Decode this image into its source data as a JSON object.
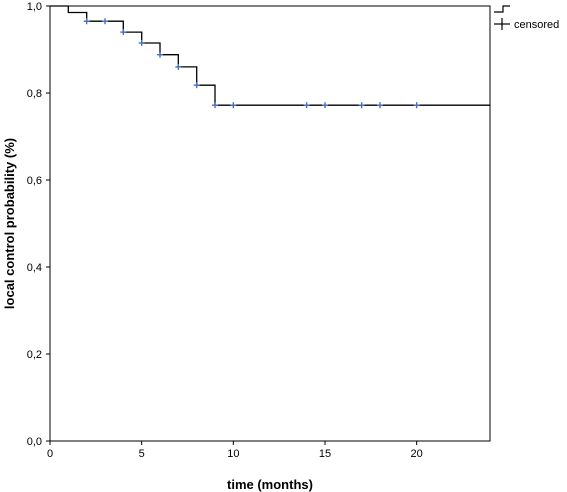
{
  "chart_data": {
    "type": "line",
    "title": "",
    "xlabel": "time (months)",
    "ylabel": "local control probability (%)",
    "xlim": [
      0,
      24
    ],
    "ylim": [
      0,
      1
    ],
    "x_ticks": [
      0,
      5,
      10,
      15,
      20
    ],
    "x_tick_labels": [
      "0",
      "5",
      "10",
      "15",
      "20"
    ],
    "y_ticks": [
      0,
      0.2,
      0.4,
      0.6,
      0.8,
      1.0
    ],
    "y_tick_labels": [
      "0,0",
      "0,2",
      "0,4",
      "0,6",
      "0,8",
      "1,0"
    ],
    "grid": false,
    "legend_position": "top-right",
    "legend": [
      {
        "label": "",
        "marker": "step-line"
      },
      {
        "label": "censored",
        "marker": "plus"
      }
    ],
    "series": [
      {
        "step_curve": [
          [
            0,
            1.0
          ],
          [
            1,
            1.0
          ],
          [
            1,
            0.985
          ],
          [
            2,
            0.985
          ],
          [
            2,
            0.965
          ],
          [
            4,
            0.965
          ],
          [
            4,
            0.94
          ],
          [
            5,
            0.94
          ],
          [
            5,
            0.915
          ],
          [
            6,
            0.915
          ],
          [
            6,
            0.888
          ],
          [
            7,
            0.888
          ],
          [
            7,
            0.86
          ],
          [
            8,
            0.86
          ],
          [
            8,
            0.818
          ],
          [
            9,
            0.818
          ],
          [
            9,
            0.772
          ],
          [
            24,
            0.772
          ]
        ],
        "censored_points": [
          [
            2,
            0.965
          ],
          [
            3,
            0.965
          ],
          [
            4,
            0.94
          ],
          [
            5,
            0.915
          ],
          [
            6,
            0.888
          ],
          [
            7,
            0.86
          ],
          [
            8,
            0.818
          ],
          [
            9,
            0.772
          ],
          [
            10,
            0.772
          ],
          [
            14,
            0.772
          ],
          [
            15,
            0.772
          ],
          [
            17,
            0.772
          ],
          [
            18,
            0.772
          ],
          [
            20,
            0.772
          ]
        ],
        "line_color": "#000000",
        "censor_color": "#4a6fc8"
      }
    ]
  }
}
